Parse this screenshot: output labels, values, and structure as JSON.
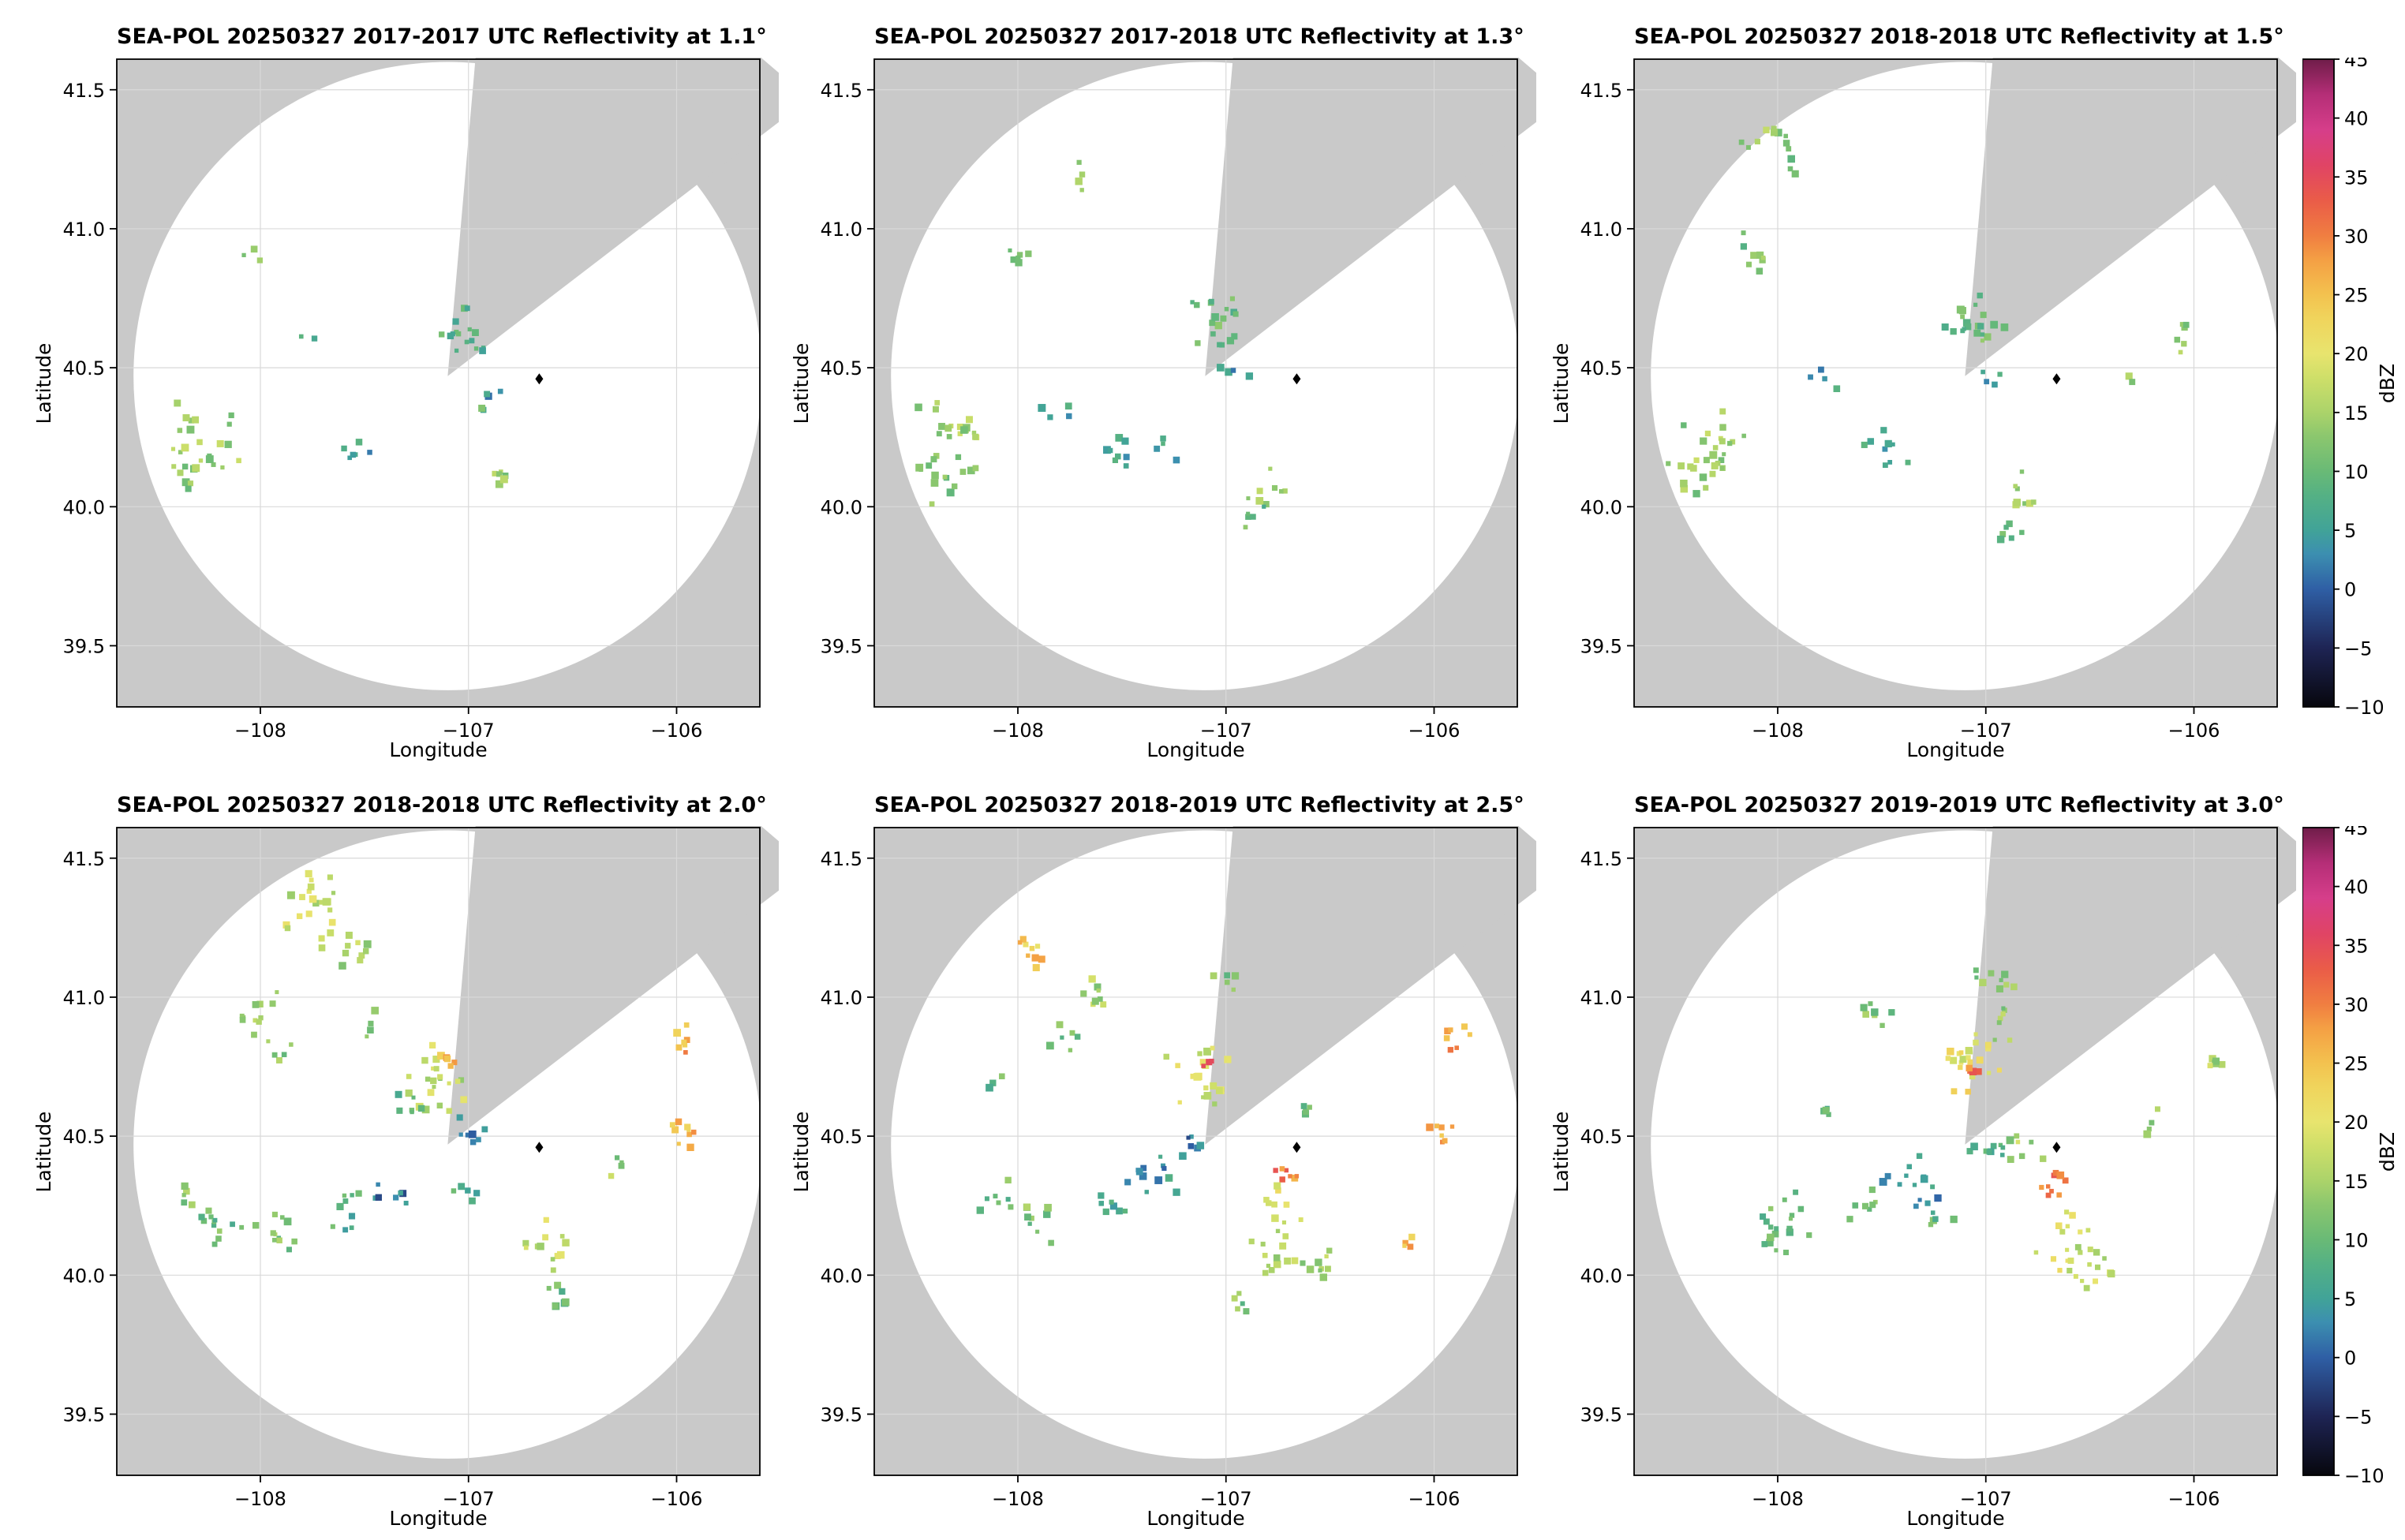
{
  "figure": {
    "background": "#ffffff",
    "map_bg": "#c9c9c9",
    "grid_color": "#d9d9d9",
    "xlim": [
      -108.69,
      -105.6
    ],
    "ylim": [
      39.28,
      41.61
    ],
    "circle": {
      "lon": -107.1,
      "lat": 40.47,
      "radius_deg_lat": 1.13
    },
    "wedge": {
      "az_start_deg": 5,
      "az_end_deg": 52.5
    },
    "radar_marker": {
      "lon": -106.66,
      "lat": 40.46,
      "shape": "diamond",
      "color": "#000000"
    }
  },
  "colormap": {
    "units": "dBZ",
    "stops": [
      [
        -10,
        "#07070d"
      ],
      [
        -5,
        "#1e2454"
      ],
      [
        0,
        "#2f5fa5"
      ],
      [
        3,
        "#3c8fb0"
      ],
      [
        5,
        "#41a398"
      ],
      [
        8,
        "#55b184"
      ],
      [
        10,
        "#69ba76"
      ],
      [
        13,
        "#8cc76e"
      ],
      [
        15,
        "#abd36a"
      ],
      [
        18,
        "#cfdf69"
      ],
      [
        20,
        "#e8e46e"
      ],
      [
        23,
        "#f0d45c"
      ],
      [
        25,
        "#f3c24f"
      ],
      [
        28,
        "#f49f44"
      ],
      [
        30,
        "#f07e41"
      ],
      [
        33,
        "#ea5c48"
      ],
      [
        36,
        "#e04465"
      ],
      [
        39,
        "#d63e8a"
      ],
      [
        42,
        "#b52e77"
      ],
      [
        45,
        "#6f1d49"
      ]
    ]
  },
  "chart_data": {
    "type": "scatter",
    "description": "Six SEA-POL radar PPI reflectivity panels (2 rows x 3 columns) with shared dBZ colorbar per row; clusters given as [lon, lat, dBZ, n_points, spread_deg]",
    "xlabel": "Longitude",
    "ylabel": "Latitude",
    "colorbar_label": "dBZ",
    "colorbar_range": [
      -10,
      45
    ],
    "x_ticks": [
      -108,
      -107,
      -106
    ],
    "y_ticks": [
      39.5,
      40.0,
      40.5,
      41.0,
      41.5
    ],
    "colorbar_ticks": [
      45,
      40,
      35,
      30,
      25,
      20,
      15,
      10,
      5,
      0,
      -5,
      -10
    ],
    "panels": [
      {
        "title": "SEA-POL 20250327 2017-2017 UTC Reflectivity at 1.1°",
        "date": "20250327",
        "time_utc": "2017-2017",
        "elevation_deg": 1.1,
        "clusters": [
          [
            -108.28,
            40.25,
            14,
            20,
            0.09
          ],
          [
            -108.38,
            40.12,
            13,
            8,
            0.05
          ],
          [
            -108.05,
            40.9,
            12,
            3,
            0.03
          ],
          [
            -107.55,
            40.21,
            5,
            6,
            0.04
          ],
          [
            -107.78,
            40.62,
            8,
            2,
            0.02
          ],
          [
            -107.05,
            40.66,
            8,
            12,
            0.06
          ],
          [
            -106.97,
            40.56,
            6,
            4,
            0.03
          ],
          [
            -106.88,
            40.42,
            5,
            3,
            0.03
          ],
          [
            -106.86,
            40.1,
            13,
            6,
            0.04
          ],
          [
            -106.95,
            40.35,
            10,
            2,
            0.02
          ]
        ]
      },
      {
        "title": "SEA-POL 20250327 2017-2018 UTC Reflectivity at 1.3°",
        "date": "20250327",
        "time_utc": "2017-2018",
        "elevation_deg": 1.3,
        "clusters": [
          [
            -108.3,
            40.25,
            14,
            24,
            0.09
          ],
          [
            -108.38,
            40.08,
            13,
            10,
            0.06
          ],
          [
            -108.02,
            40.9,
            13,
            6,
            0.04
          ],
          [
            -107.72,
            41.2,
            12,
            4,
            0.04
          ],
          [
            -107.55,
            40.22,
            6,
            8,
            0.05
          ],
          [
            -107.82,
            40.32,
            5,
            4,
            0.04
          ],
          [
            -107.05,
            40.68,
            10,
            18,
            0.07
          ],
          [
            -106.95,
            40.48,
            5,
            4,
            0.04
          ],
          [
            -106.8,
            40.06,
            14,
            8,
            0.05
          ],
          [
            -106.86,
            39.94,
            10,
            5,
            0.04
          ],
          [
            -107.3,
            40.22,
            6,
            4,
            0.04
          ]
        ]
      },
      {
        "title": "SEA-POL 20250327 2018-2018 UTC Reflectivity at 1.5°",
        "date": "20250327",
        "time_utc": "2018-2018",
        "elevation_deg": 1.5,
        "clusters": [
          [
            -108.32,
            40.22,
            14,
            22,
            0.09
          ],
          [
            -108.42,
            40.1,
            13,
            9,
            0.06
          ],
          [
            -108.05,
            41.35,
            13,
            9,
            0.06
          ],
          [
            -107.95,
            41.25,
            12,
            4,
            0.04
          ],
          [
            -108.12,
            40.92,
            12,
            8,
            0.05
          ],
          [
            -107.5,
            40.22,
            6,
            9,
            0.06
          ],
          [
            -107.05,
            40.67,
            10,
            20,
            0.07
          ],
          [
            -107.78,
            40.45,
            5,
            4,
            0.04
          ],
          [
            -106.95,
            40.45,
            6,
            4,
            0.04
          ],
          [
            -106.8,
            40.05,
            14,
            8,
            0.05
          ],
          [
            -106.9,
            39.9,
            11,
            6,
            0.04
          ],
          [
            -106.05,
            40.62,
            13,
            6,
            0.04
          ],
          [
            -106.3,
            40.45,
            12,
            2,
            0.02
          ]
        ]
      },
      {
        "title": "SEA-POL 20250327 2018-2018 UTC Reflectivity at 2.0°",
        "date": "20250327",
        "time_utc": "2018-2018",
        "elevation_deg": 2.0,
        "clusters": [
          [
            -107.75,
            41.3,
            17,
            22,
            0.1
          ],
          [
            -107.52,
            41.15,
            15,
            9,
            0.06
          ],
          [
            -108.0,
            40.92,
            16,
            11,
            0.06
          ],
          [
            -107.92,
            40.8,
            13,
            5,
            0.04
          ],
          [
            -107.15,
            40.7,
            16,
            22,
            0.08
          ],
          [
            -107.1,
            40.78,
            26,
            5,
            0.03
          ],
          [
            -107.28,
            40.6,
            8,
            6,
            0.04
          ],
          [
            -107.0,
            40.52,
            2,
            7,
            0.04
          ],
          [
            -105.95,
            40.85,
            27,
            7,
            0.04
          ],
          [
            -105.93,
            40.52,
            26,
            9,
            0.05
          ],
          [
            -108.22,
            40.2,
            10,
            12,
            0.07
          ],
          [
            -107.92,
            40.15,
            12,
            11,
            0.07
          ],
          [
            -107.6,
            40.22,
            8,
            9,
            0.06
          ],
          [
            -107.35,
            40.28,
            2,
            7,
            0.05
          ],
          [
            -106.62,
            40.1,
            18,
            12,
            0.07
          ],
          [
            -106.55,
            39.92,
            10,
            7,
            0.05
          ],
          [
            -106.32,
            40.38,
            14,
            4,
            0.03
          ],
          [
            -108.38,
            40.3,
            12,
            5,
            0.04
          ],
          [
            -107.02,
            40.3,
            7,
            5,
            0.04
          ],
          [
            -107.45,
            40.9,
            12,
            4,
            0.04
          ]
        ]
      },
      {
        "title": "SEA-POL 20250327 2018-2019 UTC Reflectivity at 2.5°",
        "date": "20250327",
        "time_utc": "2018-2019",
        "elevation_deg": 2.5,
        "clusters": [
          [
            -107.95,
            41.15,
            24,
            9,
            0.05
          ],
          [
            -107.62,
            41.0,
            15,
            8,
            0.05
          ],
          [
            -107.78,
            40.85,
            12,
            6,
            0.04
          ],
          [
            -107.12,
            40.72,
            18,
            20,
            0.08
          ],
          [
            -107.08,
            40.76,
            33,
            3,
            0.02
          ],
          [
            -107.35,
            40.35,
            4,
            12,
            0.07
          ],
          [
            -107.15,
            40.45,
            2,
            6,
            0.04
          ],
          [
            -106.7,
            40.35,
            30,
            7,
            0.03
          ],
          [
            -106.76,
            40.27,
            18,
            6,
            0.04
          ],
          [
            -105.9,
            40.85,
            27,
            7,
            0.04
          ],
          [
            -105.95,
            40.52,
            26,
            7,
            0.04
          ],
          [
            -106.75,
            40.1,
            16,
            16,
            0.09
          ],
          [
            -106.55,
            40.04,
            14,
            9,
            0.06
          ],
          [
            -106.15,
            40.12,
            26,
            4,
            0.03
          ],
          [
            -108.1,
            40.3,
            10,
            7,
            0.05
          ],
          [
            -107.92,
            40.2,
            12,
            9,
            0.06
          ],
          [
            -107.55,
            40.25,
            8,
            7,
            0.05
          ],
          [
            -106.9,
            39.92,
            12,
            5,
            0.04
          ],
          [
            -107.0,
            41.05,
            12,
            5,
            0.04
          ],
          [
            -106.62,
            40.6,
            10,
            4,
            0.03
          ],
          [
            -108.12,
            40.68,
            10,
            3,
            0.03
          ]
        ]
      },
      {
        "title": "SEA-POL 20250327 2019-2019 UTC Reflectivity at 3.0°",
        "date": "20250327",
        "time_utc": "2019-2019",
        "elevation_deg": 3.0,
        "clusters": [
          [
            -107.1,
            40.76,
            20,
            22,
            0.09
          ],
          [
            -107.05,
            40.73,
            30,
            4,
            0.02
          ],
          [
            -107.35,
            40.32,
            4,
            14,
            0.07
          ],
          [
            -106.98,
            40.46,
            8,
            9,
            0.05
          ],
          [
            -106.7,
            40.35,
            32,
            9,
            0.04
          ],
          [
            -106.82,
            40.46,
            15,
            7,
            0.05
          ],
          [
            -106.6,
            40.1,
            18,
            18,
            0.09
          ],
          [
            -106.5,
            40.0,
            16,
            9,
            0.06
          ],
          [
            -107.9,
            40.2,
            12,
            12,
            0.08
          ],
          [
            -108.05,
            40.15,
            10,
            7,
            0.05
          ],
          [
            -107.6,
            40.25,
            10,
            7,
            0.05
          ],
          [
            -107.55,
            40.95,
            12,
            7,
            0.05
          ],
          [
            -106.9,
            41.05,
            13,
            6,
            0.04
          ],
          [
            -105.9,
            40.75,
            15,
            5,
            0.04
          ],
          [
            -106.2,
            40.55,
            13,
            4,
            0.03
          ],
          [
            -107.78,
            40.6,
            8,
            4,
            0.03
          ],
          [
            -106.92,
            40.9,
            14,
            7,
            0.05
          ],
          [
            -107.22,
            40.2,
            10,
            5,
            0.04
          ],
          [
            -107.05,
            41.08,
            12,
            3,
            0.03
          ]
        ]
      }
    ]
  }
}
